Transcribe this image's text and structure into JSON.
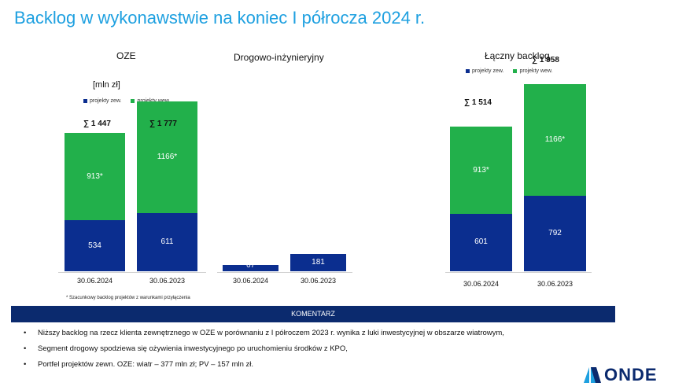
{
  "title": "Backlog w wykonawstwie na koniec I półrocza 2024 r.",
  "unit": "[mln zł]",
  "legend": {
    "external": "projekty zew.",
    "internal": "projekty wew."
  },
  "colors": {
    "external": "#0b2e8f",
    "internal": "#22b04b",
    "title": "#1ea0e0",
    "banner": "#0b2a6e"
  },
  "chart_data": [
    {
      "type": "bar",
      "stacked": true,
      "title": "OZE",
      "categories": [
        "30.06.2024",
        "30.06.2023"
      ],
      "series": [
        {
          "name": "projekty zew.",
          "values": [
            534,
            611
          ],
          "labels": [
            "534",
            "611"
          ]
        },
        {
          "name": "projekty wew.",
          "values": [
            913,
            1166
          ],
          "labels": [
            "913*",
            "1166*"
          ]
        }
      ],
      "totals": [
        "∑ 1 447",
        "∑ 1 777"
      ]
    },
    {
      "type": "bar",
      "stacked": true,
      "title": "Drogowo-inżynieryjny",
      "categories": [
        "30.06.2024",
        "30.06.2023"
      ],
      "series": [
        {
          "name": "projekty zew.",
          "values": [
            67,
            181
          ],
          "labels": [
            "67",
            "181"
          ]
        }
      ],
      "totals": []
    },
    {
      "type": "bar",
      "stacked": true,
      "title": "Łączny backlog",
      "categories": [
        "30.06.2024",
        "30.06.2023"
      ],
      "series": [
        {
          "name": "projekty zew.",
          "values": [
            601,
            792
          ],
          "labels": [
            "601",
            "792"
          ]
        },
        {
          "name": "projekty wew.",
          "values": [
            913,
            1166
          ],
          "labels": [
            "913*",
            "1166*"
          ]
        }
      ],
      "totals": [
        "∑ 1 514",
        "∑ 1 958"
      ]
    }
  ],
  "footnote": "* Szacunkowy backlog projektów z warunkami przyłączenia",
  "comment": {
    "header": "KOMENTARZ",
    "bullets": [
      "Niższy backlog na rzecz klienta zewnętrznego w OZE w porównaniu z I półroczem 2023 r. wynika z luki inwestycyjnej w obszarze wiatrowym,",
      "Segment drogowy spodziewa się ożywienia inwestycyjnego po uruchomieniu środków z KPO,",
      "Portfel projektów zewn. OZE: wiatr – 377 mln zł; PV – 157 mln zł."
    ]
  },
  "logo": {
    "text": "ONDE"
  }
}
